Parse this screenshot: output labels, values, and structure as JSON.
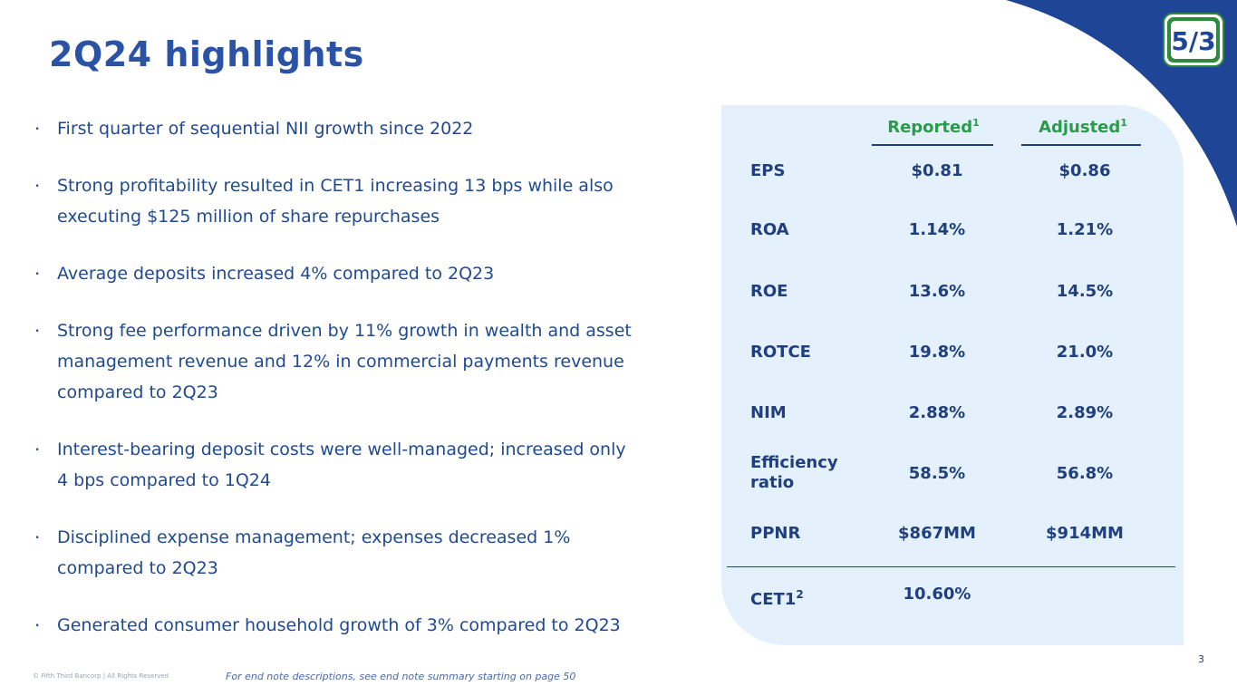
{
  "title": "2Q24 highlights",
  "bullets": [
    {
      "lines": [
        "First quarter of sequential NII growth since 2022"
      ]
    },
    {
      "lines": [
        "Strong profitability resulted in CET1 increasing 13 bps while also",
        "executing $125 million of share repurchases"
      ]
    },
    {
      "lines": [
        "Average deposits increased 4% compared to 2Q23"
      ]
    },
    {
      "lines": [
        "Strong fee performance driven by 11% growth in wealth and asset",
        "management revenue and 12% in commercial payments revenue",
        "compared to 2Q23"
      ]
    },
    {
      "lines": [
        "Interest-bearing deposit costs were well-managed; increased only",
        "4 bps compared to 1Q24"
      ]
    },
    {
      "lines": [
        "Disciplined expense management; expenses decreased 1%",
        "compared to 2Q23"
      ]
    },
    {
      "lines": [
        "Generated consumer household growth of 3% compared to 2Q23"
      ]
    }
  ],
  "table": {
    "headers": {
      "reported": "Reported",
      "reported_note": "1",
      "adjusted": "Adjusted",
      "adjusted_note": "1"
    },
    "rows": [
      {
        "label": "EPS",
        "reported": "$0.81",
        "adjusted": "$0.86"
      },
      {
        "label": "ROA",
        "reported": "1.14%",
        "adjusted": "1.21%"
      },
      {
        "label": "ROE",
        "reported": "13.6%",
        "adjusted": "14.5%"
      },
      {
        "label": "ROTCE",
        "reported": "19.8%",
        "adjusted": "21.0%"
      },
      {
        "label": "NIM",
        "reported": "2.88%",
        "adjusted": "2.89%"
      },
      {
        "label": "Efficiency ratio",
        "label_lines": [
          "Efficiency",
          "ratio"
        ],
        "reported": "58.5%",
        "adjusted": "56.8%"
      },
      {
        "label": "PPNR",
        "reported": "$867MM",
        "adjusted": "$914MM"
      }
    ],
    "cet1": {
      "label": "CET1",
      "note": "2",
      "reported": "10.60%"
    }
  },
  "logo_text": "5/3",
  "page_number": "3",
  "copyright": "© Fifth Third Bancorp | All Rights Reserved",
  "endnote": "For end note descriptions, see end note summary starting on page 50",
  "colors": {
    "brand_blue": "#1f3f7f",
    "title_blue": "#2a53a6",
    "accent_green": "#2b9a4a",
    "panel_bg": "#e4f0fb"
  }
}
